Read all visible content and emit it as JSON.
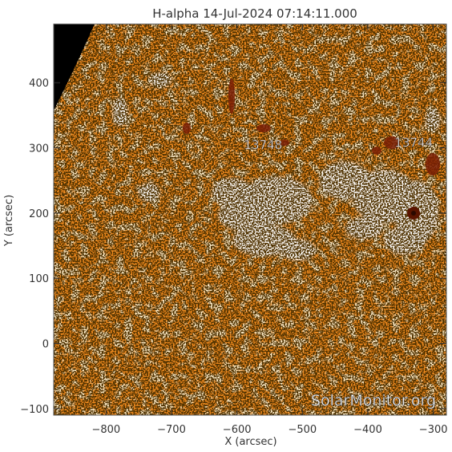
{
  "chart_data": {
    "type": "heatmap",
    "title": "H-alpha 14-Jul-2024 07:14:11.000",
    "xlabel": "X (arcsec)",
    "ylabel": "Y (arcsec)",
    "xlim": [
      -880,
      -280
    ],
    "ylim": [
      -110,
      490
    ],
    "x_ticks": [
      {
        "value": -800,
        "label": "−800"
      },
      {
        "value": -700,
        "label": "−700"
      },
      {
        "value": -600,
        "label": "−600"
      },
      {
        "value": -500,
        "label": "−500"
      },
      {
        "value": -400,
        "label": "−400"
      },
      {
        "value": -300,
        "label": "−300"
      }
    ],
    "y_ticks": [
      {
        "value": -100,
        "label": "−100"
      },
      {
        "value": 0,
        "label": "0"
      },
      {
        "value": 100,
        "label": "100"
      },
      {
        "value": 200,
        "label": "200"
      },
      {
        "value": 300,
        "label": "300"
      },
      {
        "value": 400,
        "label": "400"
      }
    ],
    "annotations": [
      {
        "text": "13748",
        "x": -560,
        "y": 298
      },
      {
        "text": "13744",
        "x": -330,
        "y": 302
      }
    ],
    "watermark": "SolarMonitor.org",
    "colors": {
      "surface_base": "#f08a1e",
      "surface_bright": "#ffd9a8",
      "plage": "#ffffff",
      "dark_feature": "#7a1e05",
      "sunspot": "#5a1400",
      "off_disk": "#000000",
      "grain": "#1a0a00"
    }
  }
}
